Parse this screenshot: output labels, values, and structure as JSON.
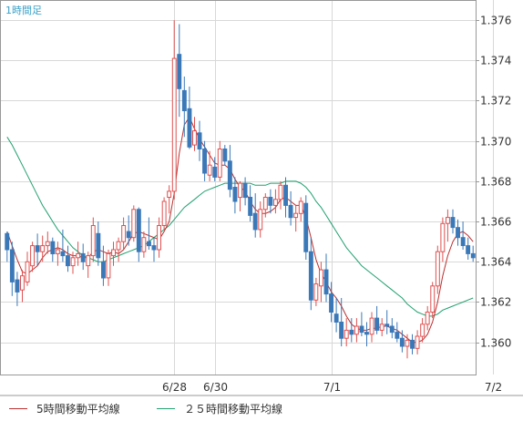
{
  "chart_data": {
    "type": "candlestick",
    "title": "",
    "period_label": "1時間足",
    "ylim": [
      1.3584,
      1.377
    ],
    "y_ticks": [
      "1.376",
      "1.374",
      "1.372",
      "1.370",
      "1.368",
      "1.366",
      "1.364",
      "1.362",
      "1.360"
    ],
    "x_tick_labels": [
      {
        "label": "6/28",
        "index": 33
      },
      {
        "label": "6/30",
        "index": 41
      },
      {
        "label": "7/1",
        "index": 64
      },
      {
        "label": "7/2",
        "index": 96
      }
    ],
    "grid": true,
    "legend_position": "bottom",
    "colors": {
      "up": "#e05050",
      "down": "#3a78b8",
      "ma5": "#b83030",
      "ma25": "#20a070",
      "grid": "#d8d8d8",
      "axis": "#999999"
    },
    "legend": [
      {
        "name": "5時間移動平均線",
        "color": "#b83030"
      },
      {
        "name": "２５時間移動平均線",
        "color": "#20a070"
      }
    ],
    "candles": [
      [
        1.3654,
        1.3655,
        1.364,
        1.3646
      ],
      [
        1.3646,
        1.365,
        1.3623,
        1.363
      ],
      [
        1.3631,
        1.3635,
        1.3618,
        1.3625
      ],
      [
        1.3626,
        1.3636,
        1.362,
        1.3633
      ],
      [
        1.363,
        1.3645,
        1.3628,
        1.364
      ],
      [
        1.3638,
        1.365,
        1.3635,
        1.3648
      ],
      [
        1.3648,
        1.3654,
        1.3638,
        1.3645
      ],
      [
        1.3645,
        1.3653,
        1.364,
        1.3648
      ],
      [
        1.3648,
        1.3655,
        1.3644,
        1.365
      ],
      [
        1.365,
        1.3652,
        1.364,
        1.3644
      ],
      [
        1.3644,
        1.365,
        1.3638,
        1.3646
      ],
      [
        1.3645,
        1.3656,
        1.364,
        1.3643
      ],
      [
        1.3643,
        1.3648,
        1.3635,
        1.3638
      ],
      [
        1.3638,
        1.3645,
        1.3634,
        1.3642
      ],
      [
        1.3642,
        1.365,
        1.3638,
        1.3644
      ],
      [
        1.3644,
        1.3649,
        1.3636,
        1.364
      ],
      [
        1.3638,
        1.3645,
        1.3632,
        1.3643
      ],
      [
        1.3643,
        1.3662,
        1.364,
        1.3658
      ],
      [
        1.3654,
        1.366,
        1.3638,
        1.3642
      ],
      [
        1.364,
        1.3648,
        1.3628,
        1.3632
      ],
      [
        1.3632,
        1.3646,
        1.3628,
        1.3644
      ],
      [
        1.3643,
        1.365,
        1.3638,
        1.3646
      ],
      [
        1.3646,
        1.3652,
        1.364,
        1.365
      ],
      [
        1.365,
        1.3662,
        1.3646,
        1.3658
      ],
      [
        1.3655,
        1.3663,
        1.3648,
        1.3652
      ],
      [
        1.3652,
        1.3668,
        1.365,
        1.3666
      ],
      [
        1.3666,
        1.3667,
        1.364,
        1.3645
      ],
      [
        1.3645,
        1.3655,
        1.3642,
        1.3652
      ],
      [
        1.365,
        1.3662,
        1.3646,
        1.3648
      ],
      [
        1.3648,
        1.3652,
        1.364,
        1.3646
      ],
      [
        1.3646,
        1.3662,
        1.3642,
        1.3658
      ],
      [
        1.3658,
        1.3672,
        1.3656,
        1.367
      ],
      [
        1.3672,
        1.3678,
        1.3664,
        1.3675
      ],
      [
        1.3675,
        1.376,
        1.3671,
        1.3741
      ],
      [
        1.3743,
        1.3758,
        1.3712,
        1.3726
      ],
      [
        1.3725,
        1.3732,
        1.3702,
        1.3715
      ],
      [
        1.3716,
        1.3727,
        1.3696,
        1.3697
      ],
      [
        1.3698,
        1.3712,
        1.3695,
        1.3705
      ],
      [
        1.3704,
        1.371,
        1.369,
        1.3696
      ],
      [
        1.3696,
        1.37,
        1.368,
        1.3684
      ],
      [
        1.3683,
        1.3695,
        1.368,
        1.3688
      ],
      [
        1.3687,
        1.3692,
        1.368,
        1.3682
      ],
      [
        1.3682,
        1.37,
        1.368,
        1.3696
      ],
      [
        1.3696,
        1.3698,
        1.3688,
        1.369
      ],
      [
        1.369,
        1.3698,
        1.3672,
        1.3676
      ],
      [
        1.3677,
        1.3682,
        1.3664,
        1.367
      ],
      [
        1.3672,
        1.368,
        1.3665,
        1.3679
      ],
      [
        1.3679,
        1.3682,
        1.3668,
        1.3672
      ],
      [
        1.3672,
        1.3678,
        1.366,
        1.3663
      ],
      [
        1.3664,
        1.3674,
        1.3652,
        1.3656
      ],
      [
        1.3656,
        1.367,
        1.3652,
        1.3666
      ],
      [
        1.3666,
        1.3674,
        1.3662,
        1.3672
      ],
      [
        1.3672,
        1.3676,
        1.3664,
        1.3668
      ],
      [
        1.3668,
        1.3676,
        1.3664,
        1.3671
      ],
      [
        1.3671,
        1.368,
        1.3666,
        1.3678
      ],
      [
        1.3678,
        1.3682,
        1.3662,
        1.3668
      ],
      [
        1.3668,
        1.3675,
        1.3658,
        1.3662
      ],
      [
        1.3662,
        1.3668,
        1.3655,
        1.3664
      ],
      [
        1.3664,
        1.3672,
        1.366,
        1.367
      ],
      [
        1.3669,
        1.3673,
        1.3641,
        1.3645
      ],
      [
        1.3645,
        1.3652,
        1.3616,
        1.3621
      ],
      [
        1.3621,
        1.3632,
        1.3618,
        1.3629
      ],
      [
        1.3628,
        1.364,
        1.362,
        1.3636
      ],
      [
        1.3636,
        1.3644,
        1.362,
        1.3624
      ],
      [
        1.3624,
        1.363,
        1.361,
        1.3615
      ],
      [
        1.3614,
        1.3622,
        1.3605,
        1.361
      ],
      [
        1.361,
        1.3622,
        1.3598,
        1.3602
      ],
      [
        1.3602,
        1.3612,
        1.3598,
        1.3606
      ],
      [
        1.3606,
        1.3612,
        1.36,
        1.3604
      ],
      [
        1.3604,
        1.3612,
        1.36,
        1.3608
      ],
      [
        1.3608,
        1.3615,
        1.3603,
        1.3605
      ],
      [
        1.3605,
        1.361,
        1.3598,
        1.3604
      ],
      [
        1.3604,
        1.3615,
        1.36,
        1.3612
      ],
      [
        1.3612,
        1.3618,
        1.3604,
        1.3606
      ],
      [
        1.3606,
        1.3612,
        1.3603,
        1.3609
      ],
      [
        1.3609,
        1.3616,
        1.3604,
        1.3608
      ],
      [
        1.3608,
        1.3612,
        1.3602,
        1.3605
      ],
      [
        1.3605,
        1.361,
        1.36,
        1.3602
      ],
      [
        1.3602,
        1.3606,
        1.3595,
        1.3598
      ],
      [
        1.3598,
        1.3604,
        1.3592,
        1.3601
      ],
      [
        1.3601,
        1.3604,
        1.3594,
        1.3597
      ],
      [
        1.3597,
        1.3606,
        1.3594,
        1.3603
      ],
      [
        1.3603,
        1.3612,
        1.36,
        1.3609
      ],
      [
        1.3609,
        1.3618,
        1.3606,
        1.3615
      ],
      [
        1.3615,
        1.363,
        1.3612,
        1.3628
      ],
      [
        1.3628,
        1.3648,
        1.3624,
        1.3645
      ],
      [
        1.3645,
        1.3662,
        1.364,
        1.3659
      ],
      [
        1.3659,
        1.3666,
        1.365,
        1.3662
      ],
      [
        1.3662,
        1.3666,
        1.3654,
        1.3657
      ],
      [
        1.3657,
        1.3661,
        1.3648,
        1.3652
      ],
      [
        1.3652,
        1.366,
        1.3646,
        1.3648
      ],
      [
        1.3648,
        1.3652,
        1.3641,
        1.3644
      ],
      [
        1.3644,
        1.3648,
        1.364,
        1.3642
      ]
    ],
    "ma5": [
      1.3655,
      1.3648,
      1.3641,
      1.3635,
      1.3634,
      1.3636,
      1.3638,
      1.3642,
      1.3645,
      1.3646,
      1.3647,
      1.3646,
      1.3644,
      1.3643,
      1.3643,
      1.3642,
      1.3642,
      1.3645,
      1.3646,
      1.3645,
      1.3644,
      1.3645,
      1.3644,
      1.3646,
      1.365,
      1.3654,
      1.3655,
      1.3654,
      1.3653,
      1.3652,
      1.3651,
      1.3655,
      1.366,
      1.3674,
      1.3694,
      1.3708,
      1.3712,
      1.3706,
      1.3701,
      1.3697,
      1.3693,
      1.3689,
      1.3688,
      1.3688,
      1.3686,
      1.3681,
      1.3677,
      1.3675,
      1.367,
      1.3666,
      1.3664,
      1.3664,
      1.3665,
      1.3667,
      1.3671,
      1.3672,
      1.367,
      1.3668,
      1.3668,
      1.3662,
      1.3652,
      1.3641,
      1.3634,
      1.363,
      1.3625,
      1.3622,
      1.3618,
      1.3613,
      1.3609,
      1.3607,
      1.3606,
      1.3606,
      1.3607,
      1.3607,
      1.3608,
      1.3608,
      1.3607,
      1.3606,
      1.3604,
      1.3602,
      1.36,
      1.36,
      1.3601,
      1.3604,
      1.361,
      1.362,
      1.3633,
      1.3643,
      1.365,
      1.3654,
      1.3655,
      1.3653,
      1.365
    ],
    "ma25": [
      1.3702,
      1.3698,
      1.3693,
      1.3688,
      1.3683,
      1.3678,
      1.3673,
      1.3668,
      1.3664,
      1.366,
      1.3656,
      1.3653,
      1.365,
      1.3647,
      1.3645,
      1.3643,
      1.3642,
      1.3641,
      1.364,
      1.364,
      1.3641,
      1.3642,
      1.3643,
      1.3644,
      1.3645,
      1.3646,
      1.3647,
      1.3648,
      1.365,
      1.3652,
      1.3654,
      1.3656,
      1.3658,
      1.3661,
      1.3664,
      1.3667,
      1.3669,
      1.3671,
      1.3673,
      1.3675,
      1.3676,
      1.3677,
      1.3678,
      1.3679,
      1.3679,
      1.3679,
      1.3679,
      1.3679,
      1.3679,
      1.3678,
      1.3678,
      1.3678,
      1.3679,
      1.3679,
      1.3679,
      1.368,
      1.368,
      1.368,
      1.3679,
      1.3677,
      1.3674,
      1.367,
      1.3667,
      1.3663,
      1.3659,
      1.3655,
      1.3651,
      1.3647,
      1.3644,
      1.3641,
      1.3638,
      1.3636,
      1.3634,
      1.3632,
      1.363,
      1.3628,
      1.3626,
      1.3624,
      1.3622,
      1.3619,
      1.3617,
      1.3615,
      1.3614,
      1.3613,
      1.3613,
      1.3614,
      1.3616,
      1.3617,
      1.3618,
      1.3619,
      1.362,
      1.3621,
      1.3622
    ]
  }
}
